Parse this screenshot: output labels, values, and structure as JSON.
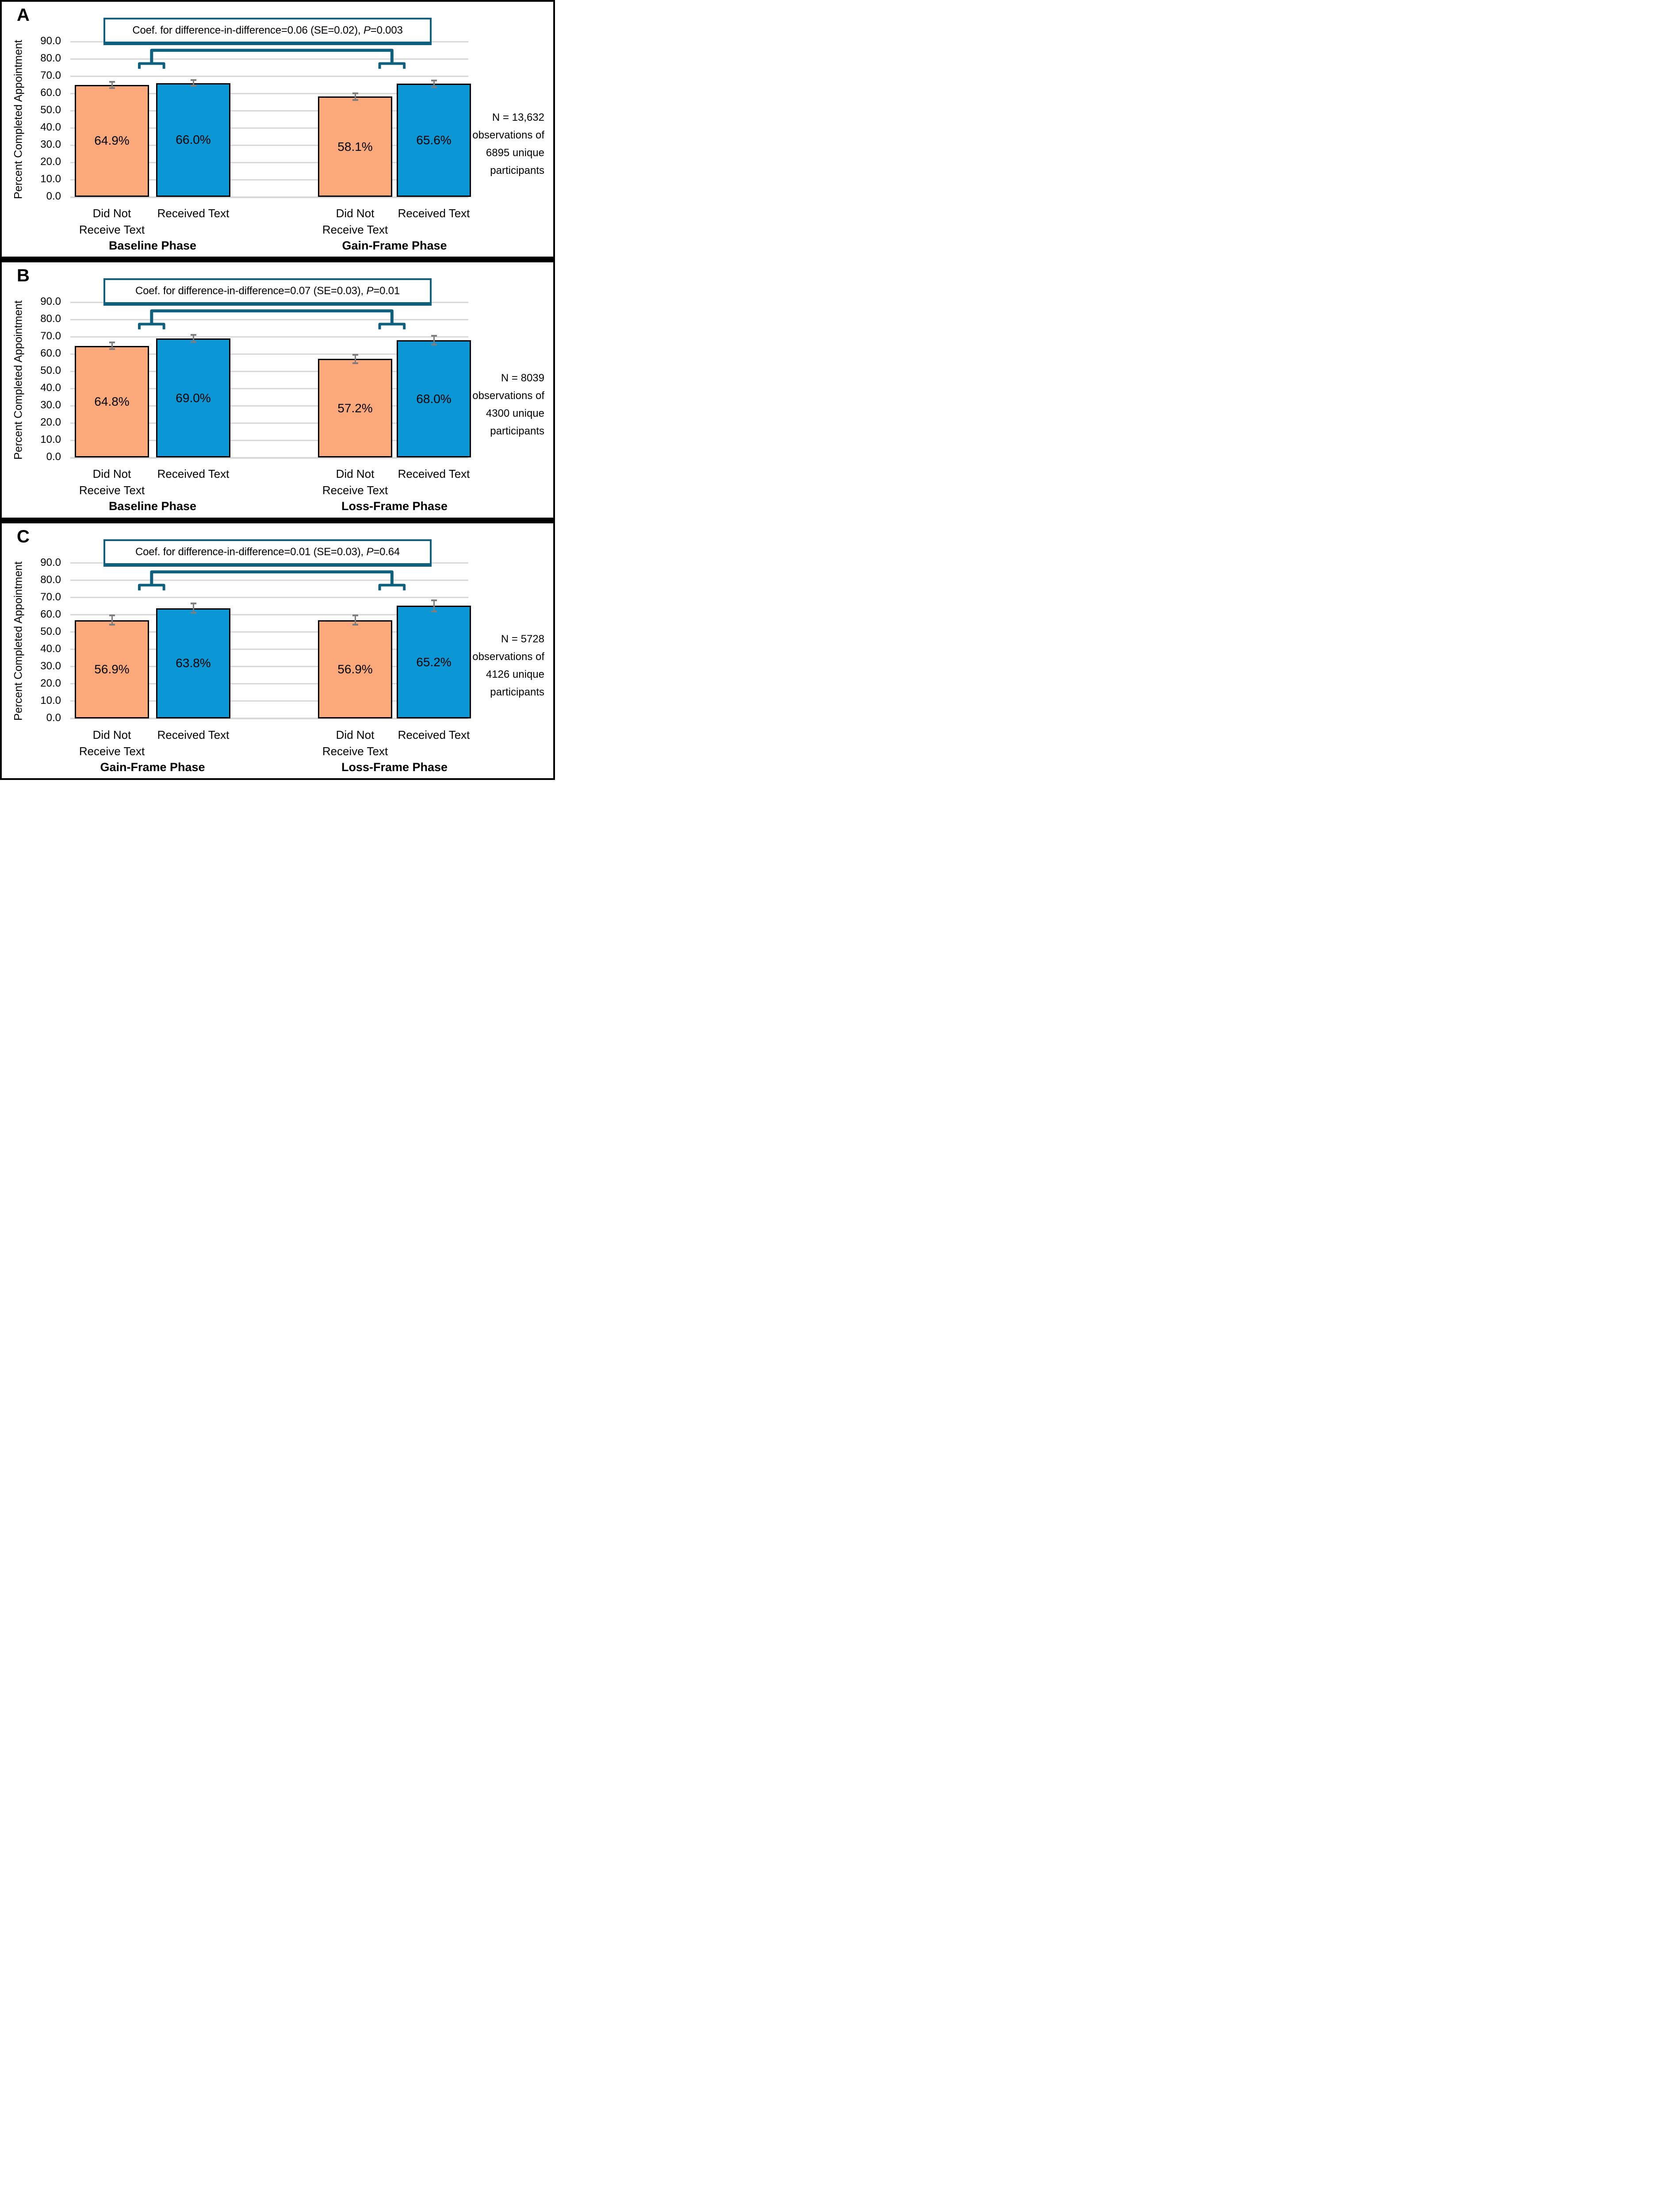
{
  "colors": {
    "teal": "#0F607E",
    "grid": "#D9D9D9",
    "error_bar": "#7F7F7F",
    "bar_border": "#000000",
    "panel_border": "#000000"
  },
  "series": [
    {
      "name": "Did Not Receive Text",
      "color": "#FBA87B"
    },
    {
      "name": "Received Text",
      "color": "#0B97D5"
    }
  ],
  "y_axis": {
    "title": "Percent Completed Appointment",
    "ticks": [
      "90.0",
      "80.0",
      "70.0",
      "60.0",
      "50.0",
      "40.0",
      "30.0",
      "20.0",
      "10.0",
      "0.0"
    ],
    "tick_values": [
      90,
      80,
      70,
      60,
      50,
      40,
      30,
      20,
      10,
      0
    ],
    "ylim": [
      0,
      90
    ],
    "grid": true
  },
  "chart_data": [
    {
      "type": "bar",
      "letter": "A",
      "annotation_text": "Coef. for difference-in-difference=0.06 (SE=0.02), P=0.003",
      "annotation": {
        "before": "Coef. for difference-in-difference=0.06 (SE=0.02), ",
        "p": "P",
        "after": "=0.003"
      },
      "ylabel": "Percent Completed Appointment",
      "ylim": [
        0,
        90
      ],
      "note_lines": [
        "N = 13,632",
        "observations of",
        "6895 unique",
        "participants"
      ],
      "groups": [
        {
          "phase": "Baseline Phase",
          "bars": [
            {
              "series": "Did Not Receive Text",
              "label_lines": [
                "Did Not",
                "Receive Text"
              ],
              "value": 64.9,
              "display": "64.9%",
              "error": 1.7
            },
            {
              "series": "Received Text",
              "label_lines": [
                "Received Text"
              ],
              "value": 66.0,
              "display": "66.0%",
              "error": 1.7
            }
          ]
        },
        {
          "phase": "Gain-Frame Phase",
          "bars": [
            {
              "series": "Did Not Receive Text",
              "label_lines": [
                "Did Not",
                "Receive Text"
              ],
              "value": 58.1,
              "display": "58.1%",
              "error": 1.9
            },
            {
              "series": "Received Text",
              "label_lines": [
                "Received Text"
              ],
              "value": 65.6,
              "display": "65.6%",
              "error": 1.9
            }
          ]
        }
      ]
    },
    {
      "type": "bar",
      "letter": "B",
      "annotation_text": "Coef. for difference-in-difference=0.07 (SE=0.03), P=0.01",
      "annotation": {
        "before": "Coef. for difference-in-difference=0.07 (SE=0.03), ",
        "p": "P",
        "after": "=0.01"
      },
      "ylabel": "Percent Completed Appointment",
      "ylim": [
        0,
        90
      ],
      "note_lines": [
        "N = 8039",
        "observations of",
        "4300 unique",
        "participants"
      ],
      "groups": [
        {
          "phase": "Baseline Phase",
          "bars": [
            {
              "series": "Did Not Receive Text",
              "label_lines": [
                "Did Not",
                "Receive Text"
              ],
              "value": 64.8,
              "display": "64.8%",
              "error": 2.0
            },
            {
              "series": "Received Text",
              "label_lines": [
                "Received Text"
              ],
              "value": 69.0,
              "display": "69.0%",
              "error": 2.1
            }
          ]
        },
        {
          "phase": "Loss-Frame Phase",
          "bars": [
            {
              "series": "Did Not Receive Text",
              "label_lines": [
                "Did Not",
                "Receive Text"
              ],
              "value": 57.2,
              "display": "57.2%",
              "error": 2.4
            },
            {
              "series": "Received Text",
              "label_lines": [
                "Received Text"
              ],
              "value": 68.0,
              "display": "68.0%",
              "error": 2.5
            }
          ]
        }
      ]
    },
    {
      "type": "bar",
      "letter": "C",
      "annotation_text": "Coef. for difference-in-difference=0.01 (SE=0.03), P=0.64",
      "annotation": {
        "before": "Coef. for difference-in-difference=0.01 (SE=0.03), ",
        "p": "P",
        "after": "=0.64"
      },
      "ylabel": "Percent Completed Appointment",
      "ylim": [
        0,
        90
      ],
      "note_lines": [
        "N = 5728",
        "observations of",
        "4126 unique",
        "participants"
      ],
      "groups": [
        {
          "phase": "Gain-Frame Phase",
          "bars": [
            {
              "series": "Did Not Receive Text",
              "label_lines": [
                "Did Not",
                "Receive Text"
              ],
              "value": 56.9,
              "display": "56.9%",
              "error": 2.7
            },
            {
              "series": "Received Text",
              "label_lines": [
                "Received Text"
              ],
              "value": 63.8,
              "display": "63.8%",
              "error": 2.7
            }
          ]
        },
        {
          "phase": "Loss-Frame Phase",
          "bars": [
            {
              "series": "Did Not Receive Text",
              "label_lines": [
                "Did Not",
                "Receive Text"
              ],
              "value": 56.9,
              "display": "56.9%",
              "error": 2.7
            },
            {
              "series": "Received Text",
              "label_lines": [
                "Received Text"
              ],
              "value": 65.2,
              "display": "65.2%",
              "error": 3.2
            }
          ]
        }
      ]
    }
  ]
}
